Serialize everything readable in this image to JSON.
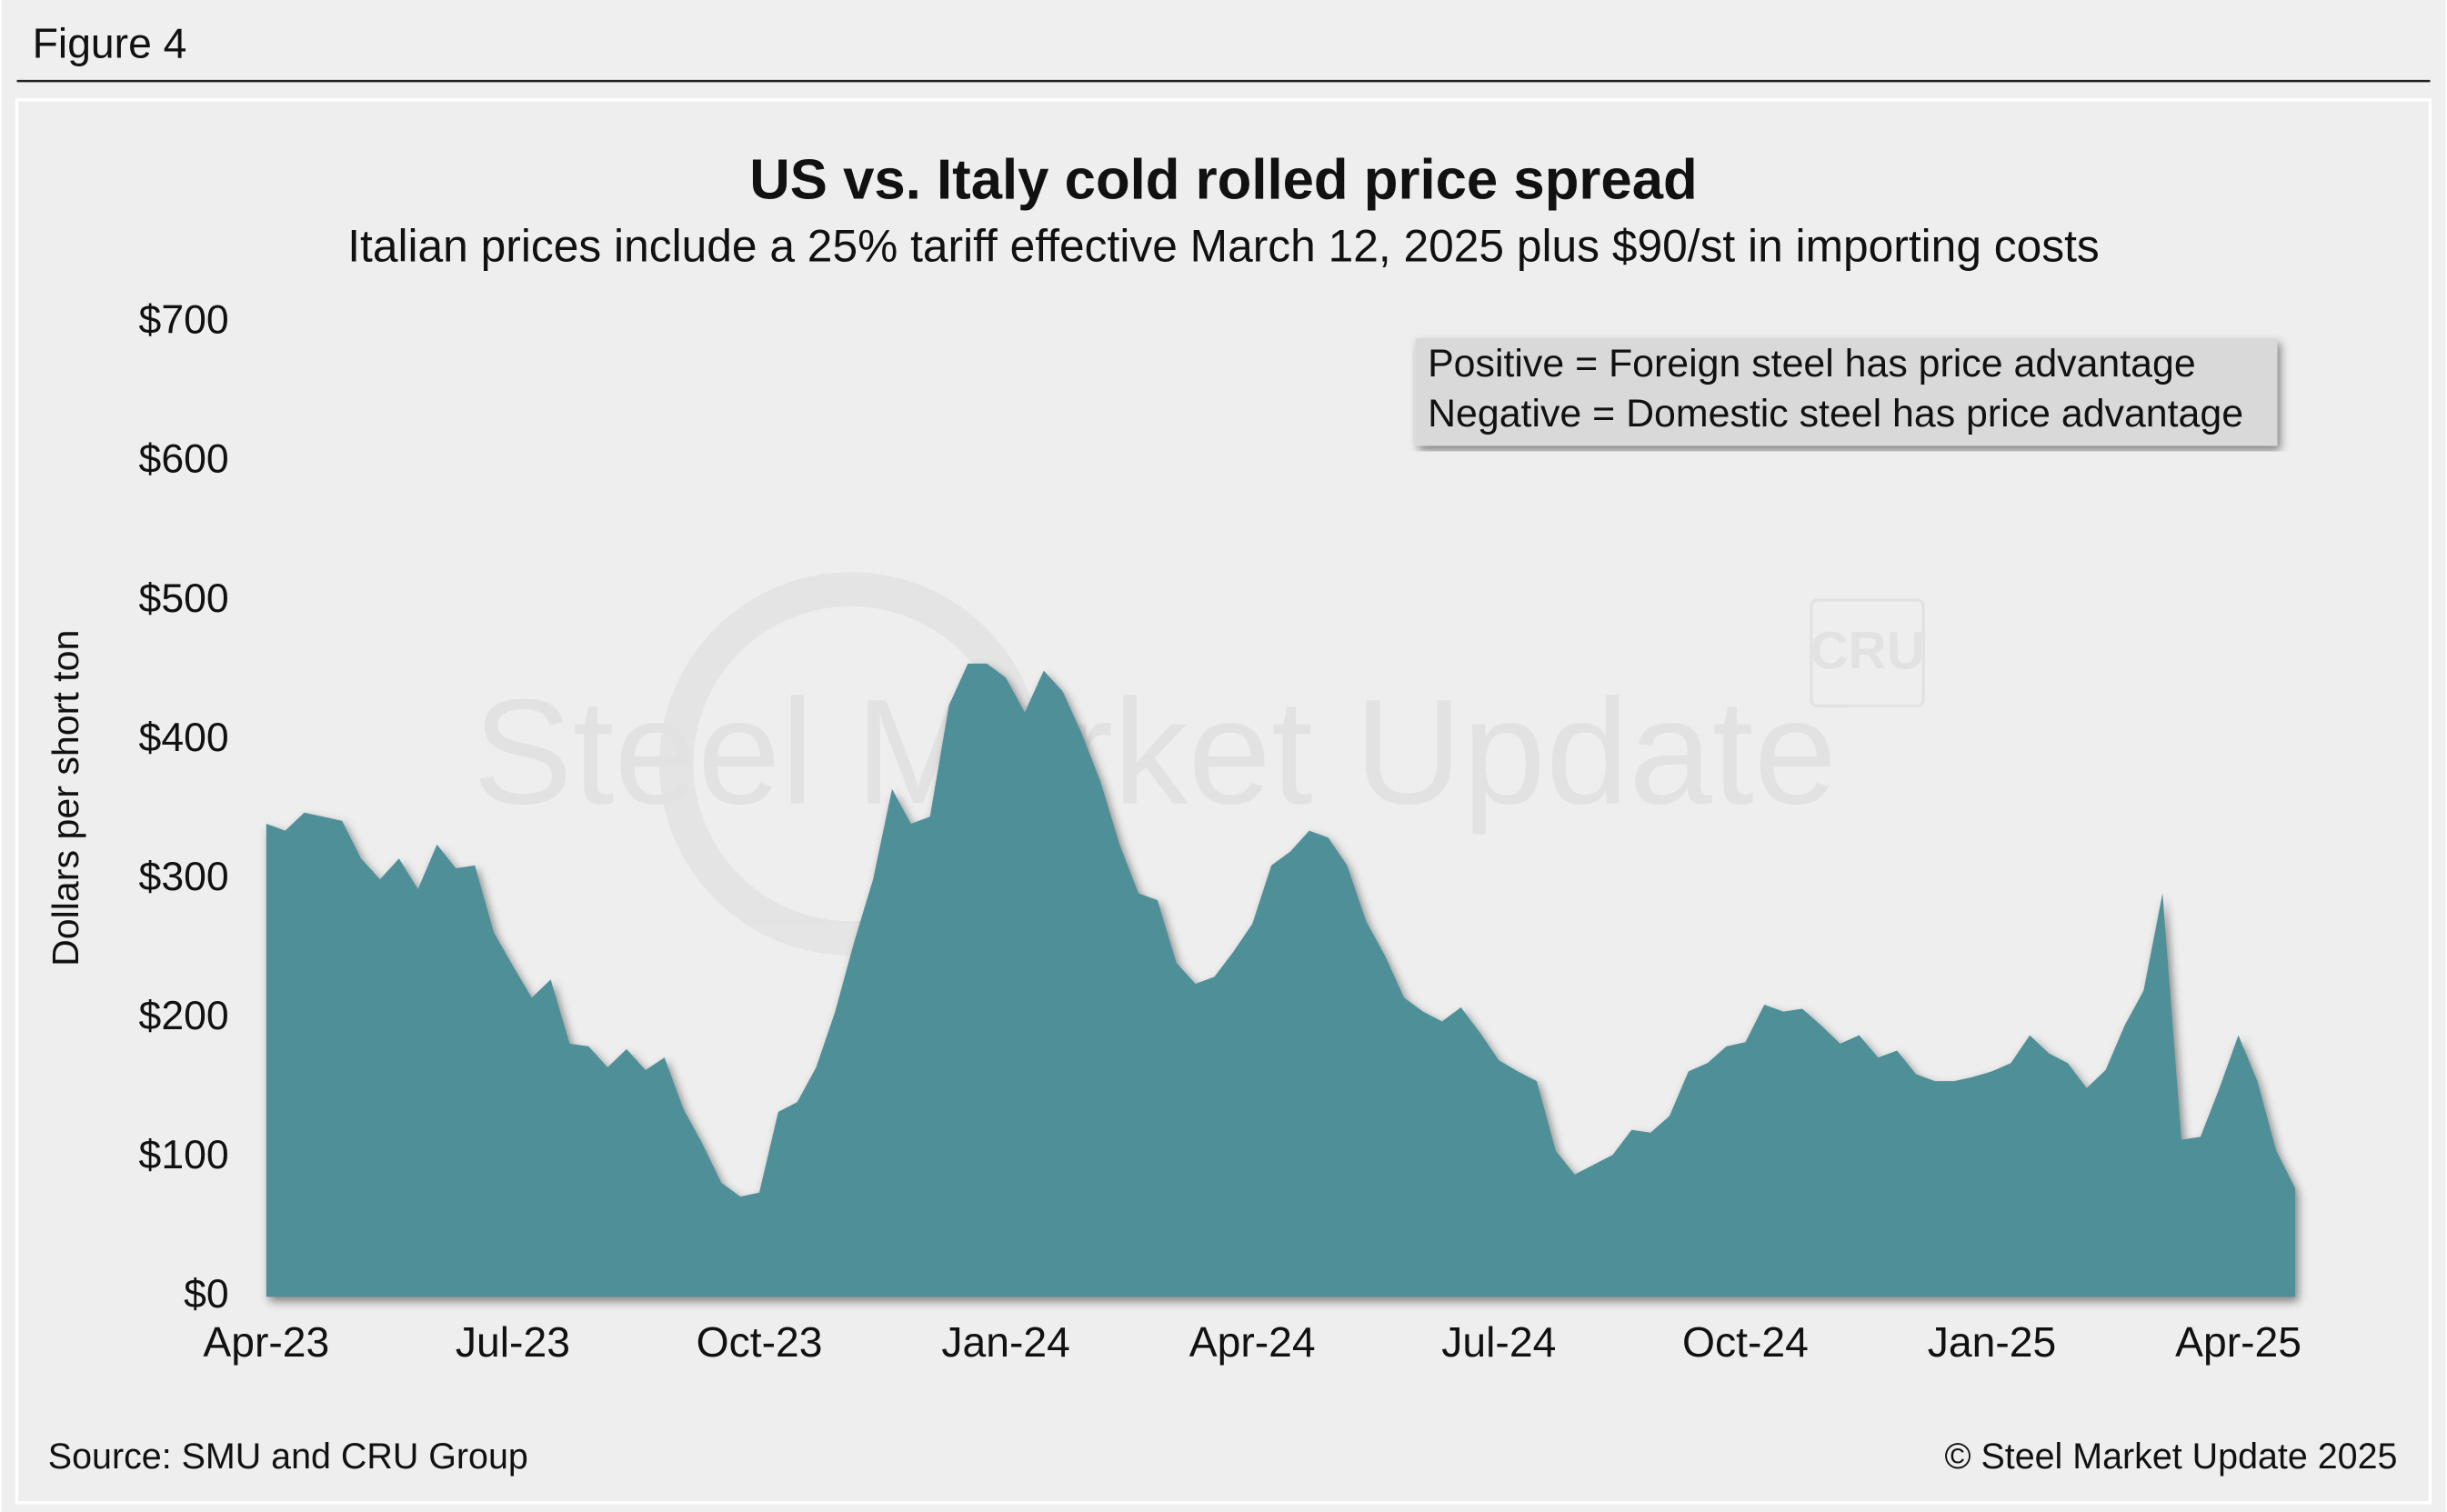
{
  "figure_label": "Figure 4",
  "chart_data": {
    "type": "area",
    "title": "US vs. Italy cold rolled price spread",
    "subtitle": "Italian prices include a 25% tariff effective March 12, 2025 plus $90/st in importing costs",
    "y_label": "Dollars per short ton",
    "annotation": [
      "Positive = Foreign steel has price advantage",
      "Negative = Domestic steel has price advantage"
    ],
    "watermark": "Steel Market Update",
    "logo": "CRU",
    "source": "Source: SMU and CRU Group",
    "copyright": "© Steel Market Update 2025",
    "color": "#4f8f97",
    "ylim": [
      0,
      700
    ],
    "yticks": [
      {
        "value": 0,
        "label": "$0"
      },
      {
        "value": 100,
        "label": "$100"
      },
      {
        "value": 200,
        "label": "$200"
      },
      {
        "value": 300,
        "label": "$300"
      },
      {
        "value": 400,
        "label": "$400"
      },
      {
        "value": 500,
        "label": "$500"
      },
      {
        "value": 600,
        "label": "$600"
      },
      {
        "value": 700,
        "label": "$700"
      }
    ],
    "categories": [
      "Apr-23",
      null,
      null,
      null,
      null,
      null,
      null,
      null,
      null,
      null,
      null,
      null,
      null,
      "Jul-23",
      null,
      null,
      null,
      null,
      null,
      null,
      null,
      null,
      null,
      null,
      null,
      null,
      "Oct-23",
      null,
      null,
      null,
      null,
      null,
      null,
      null,
      null,
      null,
      null,
      null,
      null,
      "Jan-24",
      null,
      null,
      null,
      null,
      null,
      null,
      null,
      null,
      null,
      null,
      null,
      null,
      "Apr-24",
      null,
      null,
      null,
      null,
      null,
      null,
      null,
      null,
      null,
      null,
      null,
      null,
      "Jul-24",
      null,
      null,
      null,
      null,
      null,
      null,
      null,
      null,
      null,
      null,
      null,
      null,
      "Oct-24",
      null,
      null,
      null,
      null,
      null,
      null,
      null,
      null,
      null,
      null,
      null,
      null,
      "Jan-25",
      null,
      null,
      null,
      null,
      null,
      null,
      null,
      null,
      null,
      null,
      null,
      null,
      "Apr-25",
      null,
      null,
      null
    ],
    "values": [
      340,
      335,
      348,
      345,
      342,
      315,
      300,
      315,
      293,
      325,
      308,
      310,
      262,
      238,
      215,
      228,
      182,
      180,
      165,
      178,
      163,
      172,
      135,
      110,
      82,
      72,
      75,
      133,
      140,
      165,
      205,
      255,
      300,
      365,
      340,
      345,
      425,
      455,
      455,
      445,
      420,
      450,
      435,
      405,
      370,
      325,
      290,
      285,
      240,
      225,
      230,
      248,
      268,
      310,
      320,
      335,
      330,
      310,
      270,
      245,
      215,
      205,
      198,
      208,
      190,
      170,
      162,
      155,
      105,
      88,
      95,
      102,
      120,
      118,
      130,
      162,
      168,
      180,
      183,
      210,
      205,
      207,
      195,
      182,
      188,
      172,
      177,
      160,
      155,
      155,
      158,
      162,
      168,
      188,
      175,
      168,
      150,
      163,
      195,
      220,
      290,
      113,
      115,
      150,
      188,
      155,
      105,
      78
    ]
  }
}
